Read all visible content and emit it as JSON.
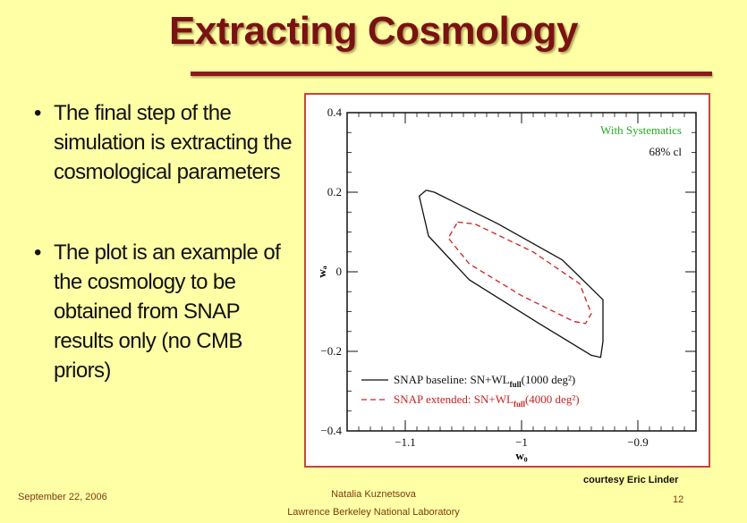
{
  "slide": {
    "title": "Extracting Cosmology",
    "bullets": [
      "The final step of the simulation is extracting the cosmological parameters",
      "The plot is an example of the cosmology to be obtained from SNAP results only (no CMB priors)"
    ],
    "bullet_symbol": "•",
    "credit": "courtesy Eric Linder",
    "footer": {
      "date": "September 22, 2006",
      "author": "Natalia Kuznetsova",
      "lab": "Lawrence Berkeley National Laboratory",
      "page": "12"
    },
    "colors": {
      "background": "#FFFFA6",
      "title": "#7A1212",
      "rule": "#8B1A1A",
      "plot_border": "#C8453A"
    }
  },
  "chart_data": {
    "type": "line",
    "xlabel": "w₀",
    "ylabel": "wₐ",
    "xlim": [
      -1.15,
      -0.85
    ],
    "ylim": [
      -0.4,
      0.4
    ],
    "xticks": [
      -1.1,
      -1,
      -0.9
    ],
    "xtick_labels": [
      "−1.1",
      "−1",
      "−0.9"
    ],
    "yticks": [
      0.4,
      0.2,
      0,
      -0.2,
      -0.4
    ],
    "ytick_labels": [
      "0.4",
      "0.2",
      "0",
      "−0.2",
      "−0.4"
    ],
    "annotations": [
      {
        "text": "With Systematics",
        "color": "#22AA22"
      },
      {
        "text": "68% cl",
        "color": "#111111"
      }
    ],
    "series": [
      {
        "name": "SNAP baseline: SN+WL",
        "sub": "full",
        "suffix": "(1000 deg²)",
        "color": "#111111",
        "dash": "solid",
        "points": [
          [
            -1.082,
            0.205
          ],
          [
            -1.075,
            0.2
          ],
          [
            -1.02,
            0.12
          ],
          [
            -0.965,
            0.03
          ],
          [
            -0.93,
            -0.07
          ],
          [
            -0.93,
            -0.175
          ],
          [
            -0.932,
            -0.215
          ],
          [
            -0.94,
            -0.21
          ],
          [
            -0.985,
            -0.13
          ],
          [
            -1.045,
            -0.02
          ],
          [
            -1.08,
            0.09
          ],
          [
            -1.088,
            0.19
          ],
          [
            -1.082,
            0.205
          ]
        ]
      },
      {
        "name": "SNAP extended: SN+WL",
        "sub": "full",
        "suffix": "(4000 deg²)",
        "color": "#CC2222",
        "dash": "dashed",
        "points": [
          [
            -1.055,
            0.125
          ],
          [
            -1.04,
            0.12
          ],
          [
            -0.99,
            0.05
          ],
          [
            -0.95,
            -0.03
          ],
          [
            -0.94,
            -0.105
          ],
          [
            -0.945,
            -0.13
          ],
          [
            -0.955,
            -0.125
          ],
          [
            -1,
            -0.06
          ],
          [
            -1.045,
            0.02
          ],
          [
            -1.063,
            0.085
          ],
          [
            -1.055,
            0.125
          ]
        ]
      }
    ]
  }
}
